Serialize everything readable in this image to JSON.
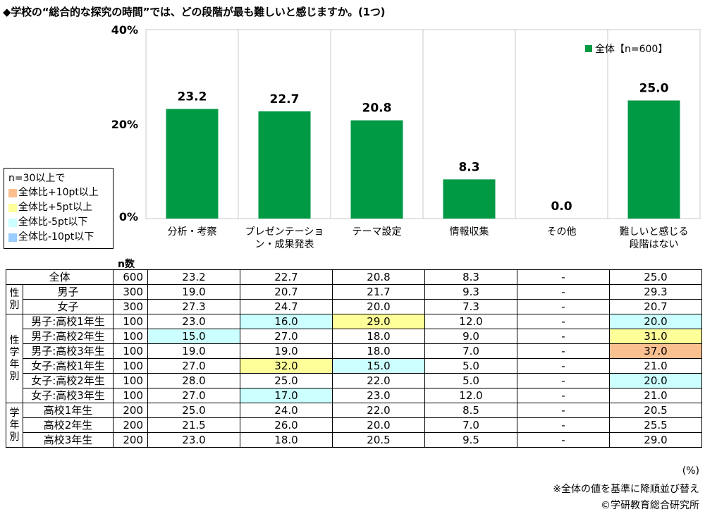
{
  "title": "◆学校の“総合的な探究の時間”では、どの段階が最も難しいと感じますか。(1つ)",
  "chart_data": {
    "type": "bar",
    "categories": [
      "分析・考察",
      "プレゼンテーション・成果発表",
      "テーマ設定",
      "情報収集",
      "その他",
      "難しいと感じる段階はない"
    ],
    "category_lines": [
      [
        "分析・考察"
      ],
      [
        "プレゼンテーショ",
        "ン・成果発表"
      ],
      [
        "テーマ設定"
      ],
      [
        "情報収集"
      ],
      [
        "その他"
      ],
      [
        "難しいと感じる",
        "段階はない"
      ]
    ],
    "series": [
      {
        "name": "全体【n=600】",
        "values": [
          23.2,
          22.7,
          20.8,
          8.3,
          0.0,
          25.0
        ]
      }
    ],
    "value_labels": [
      "23.2",
      "22.7",
      "20.8",
      "8.3",
      "0.0",
      "25.0"
    ],
    "ylim": [
      0,
      40
    ],
    "yticks": [
      "0%",
      "20%",
      "40%"
    ],
    "ytick_values": [
      0,
      20,
      40
    ],
    "bar_color": "#009944",
    "legend_position": "top-right",
    "grid": "vertical separators"
  },
  "legend": {
    "header": "n=30以上で",
    "items": [
      {
        "label": "全体比+10pt以上",
        "color": "#FAC090"
      },
      {
        "label": "全体比+5pt以上",
        "color": "#FFFF99"
      },
      {
        "label": "全体比-5pt以下",
        "color": "#CCFFFF"
      },
      {
        "label": "全体比-10pt以下",
        "color": "#99CCFF"
      }
    ]
  },
  "n_label": "n数",
  "table": {
    "rows": [
      {
        "group": "",
        "label": "全体",
        "n": "600",
        "values": [
          "23.2",
          "22.7",
          "20.8",
          "8.3",
          "-",
          "25.0"
        ],
        "hl": [
          "",
          "",
          "",
          "",
          "",
          ""
        ]
      },
      {
        "group": "性別",
        "label": "男子",
        "n": "300",
        "values": [
          "19.0",
          "20.7",
          "21.7",
          "9.3",
          "-",
          "29.3"
        ],
        "hl": [
          "",
          "",
          "",
          "",
          "",
          ""
        ]
      },
      {
        "group": "性別",
        "label": "女子",
        "n": "300",
        "values": [
          "27.3",
          "24.7",
          "20.0",
          "7.3",
          "-",
          "20.7"
        ],
        "hl": [
          "",
          "",
          "",
          "",
          "",
          ""
        ]
      },
      {
        "group": "性学年別",
        "label": "男子:高校1年生",
        "n": "100",
        "values": [
          "23.0",
          "16.0",
          "29.0",
          "12.0",
          "-",
          "20.0"
        ],
        "hl": [
          "",
          "#CCFFFF",
          "#FFFF99",
          "",
          "",
          "#CCFFFF"
        ]
      },
      {
        "group": "性学年別",
        "label": "男子:高校2年生",
        "n": "100",
        "values": [
          "15.0",
          "27.0",
          "18.0",
          "9.0",
          "-",
          "31.0"
        ],
        "hl": [
          "#CCFFFF",
          "",
          "",
          "",
          "",
          "#FFFF99"
        ]
      },
      {
        "group": "性学年別",
        "label": "男子:高校3年生",
        "n": "100",
        "values": [
          "19.0",
          "19.0",
          "18.0",
          "7.0",
          "-",
          "37.0"
        ],
        "hl": [
          "",
          "",
          "",
          "",
          "",
          "#FAC090"
        ]
      },
      {
        "group": "性学年別",
        "label": "女子:高校1年生",
        "n": "100",
        "values": [
          "27.0",
          "32.0",
          "15.0",
          "5.0",
          "-",
          "21.0"
        ],
        "hl": [
          "",
          "#FFFF99",
          "#CCFFFF",
          "",
          "",
          ""
        ]
      },
      {
        "group": "性学年別",
        "label": "女子:高校2年生",
        "n": "100",
        "values": [
          "28.0",
          "25.0",
          "22.0",
          "5.0",
          "-",
          "20.0"
        ],
        "hl": [
          "",
          "",
          "",
          "",
          "",
          "#CCFFFF"
        ]
      },
      {
        "group": "性学年別",
        "label": "女子:高校3年生",
        "n": "100",
        "values": [
          "27.0",
          "17.0",
          "23.0",
          "12.0",
          "-",
          "21.0"
        ],
        "hl": [
          "",
          "#CCFFFF",
          "",
          "",
          "",
          ""
        ]
      },
      {
        "group": "学年別",
        "label": "高校1年生",
        "n": "200",
        "values": [
          "25.0",
          "24.0",
          "22.0",
          "8.5",
          "-",
          "20.5"
        ],
        "hl": [
          "",
          "",
          "",
          "",
          "",
          ""
        ]
      },
      {
        "group": "学年別",
        "label": "高校2年生",
        "n": "200",
        "values": [
          "21.5",
          "26.0",
          "20.0",
          "7.0",
          "-",
          "25.5"
        ],
        "hl": [
          "",
          "",
          "",
          "",
          "",
          ""
        ]
      },
      {
        "group": "学年別",
        "label": "高校3年生",
        "n": "200",
        "values": [
          "23.0",
          "18.0",
          "20.5",
          "9.5",
          "-",
          "29.0"
        ],
        "hl": [
          "",
          "",
          "",
          "",
          "",
          ""
        ]
      }
    ]
  },
  "footnotes": {
    "unit": "(%)",
    "sort_note": "※全体の値を基準に降順並び替え",
    "copyright": "©学研教育総合研究所"
  }
}
